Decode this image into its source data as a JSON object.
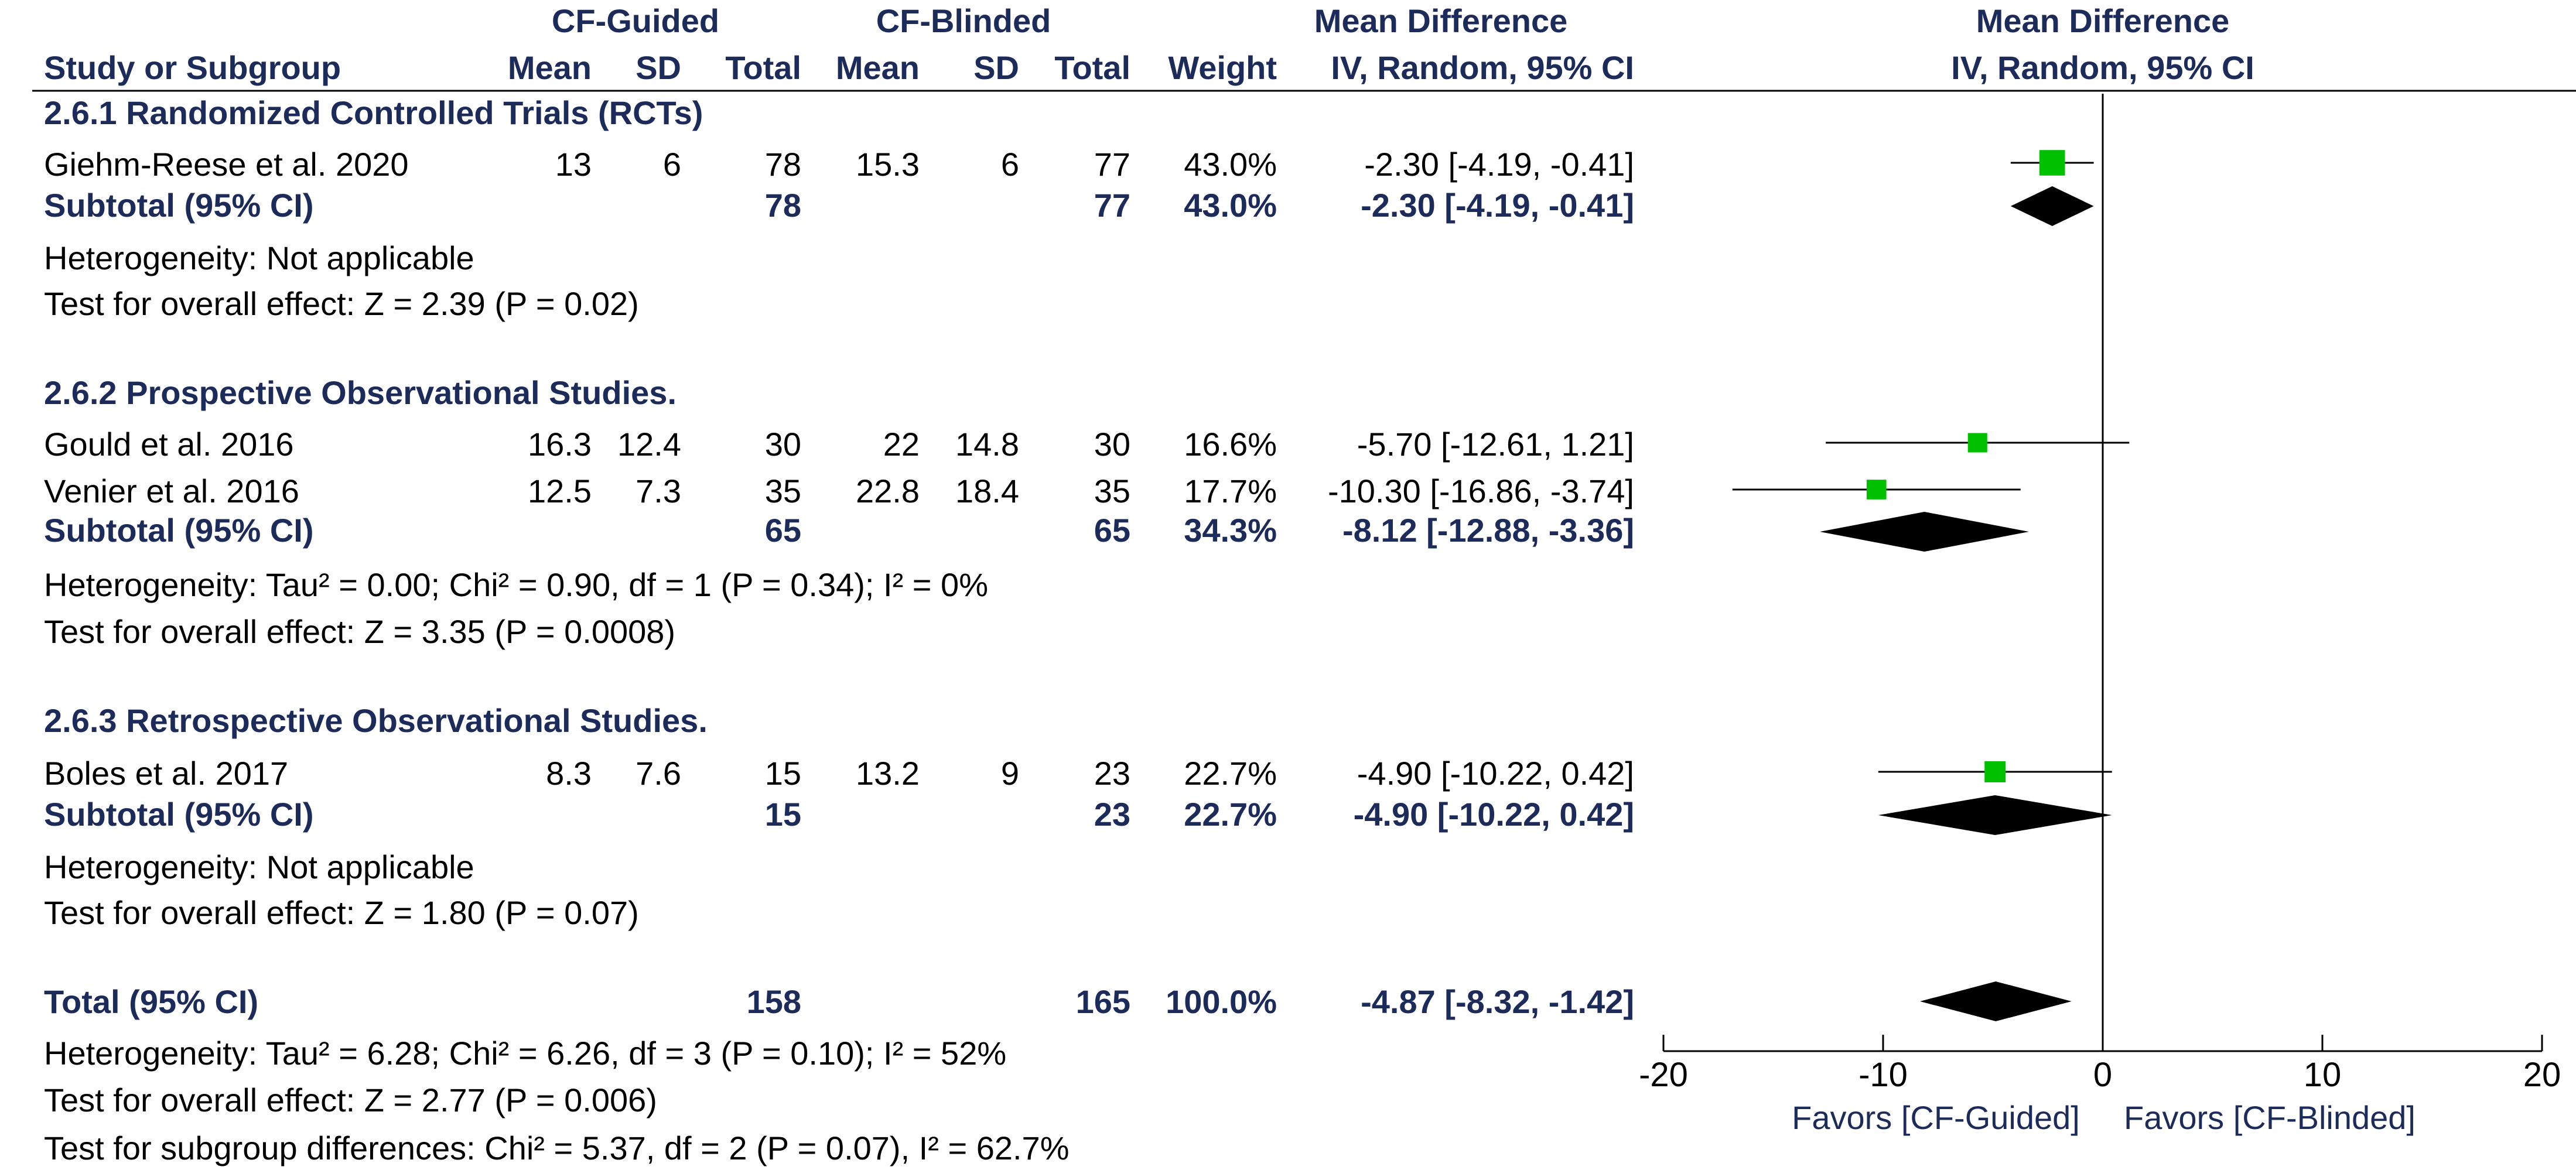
{
  "header": {
    "group1": "CF-Guided",
    "group2": "CF-Blinded",
    "md_title": "Mean Difference",
    "plot_title": "Mean Difference",
    "col_study": "Study or Subgroup",
    "col_mean1": "Mean",
    "col_sd1": "SD",
    "col_total1": "Total",
    "col_mean2": "Mean",
    "col_sd2": "SD",
    "col_total2": "Total",
    "col_weight": "Weight",
    "col_ci": "IV, Random, 95% CI",
    "plot_ci": "IV, Random, 95% CI"
  },
  "subgroups": [
    {
      "title": "2.6.1 Randomized Controlled Trials (RCTs)",
      "studies": [
        {
          "name": "Giehm-Reese et al. 2020",
          "m1": "13",
          "sd1": "6",
          "n1": "78",
          "m2": "15.3",
          "sd2": "6",
          "n2": "77",
          "weight": "43.0%",
          "ci": "-2.30 [-4.19, -0.41]"
        }
      ],
      "subtotal": {
        "label": "Subtotal (95% CI)",
        "n1": "78",
        "n2": "77",
        "weight": "43.0%",
        "ci": "-2.30 [-4.19, -0.41]"
      },
      "heterogeneity": "Heterogeneity: Not applicable",
      "overall": "Test for overall effect: Z = 2.39 (P = 0.02)"
    },
    {
      "title": "2.6.2 Prospective Observational Studies.",
      "studies": [
        {
          "name": "Gould et al. 2016",
          "m1": "16.3",
          "sd1": "12.4",
          "n1": "30",
          "m2": "22",
          "sd2": "14.8",
          "n2": "30",
          "weight": "16.6%",
          "ci": "-5.70 [-12.61, 1.21]"
        },
        {
          "name": "Venier et al. 2016",
          "m1": "12.5",
          "sd1": "7.3",
          "n1": "35",
          "m2": "22.8",
          "sd2": "18.4",
          "n2": "35",
          "weight": "17.7%",
          "ci": "-10.30 [-16.86, -3.74]"
        }
      ],
      "subtotal": {
        "label": "Subtotal (95% CI)",
        "n1": "65",
        "n2": "65",
        "weight": "34.3%",
        "ci": "-8.12 [-12.88, -3.36]"
      },
      "heterogeneity": "Heterogeneity: Tau² = 0.00; Chi² = 0.90, df = 1 (P = 0.34); I² = 0%",
      "overall": "Test for overall effect: Z = 3.35 (P = 0.0008)"
    },
    {
      "title": "2.6.3 Retrospective Observational Studies.",
      "studies": [
        {
          "name": "Boles et al. 2017",
          "m1": "8.3",
          "sd1": "7.6",
          "n1": "15",
          "m2": "13.2",
          "sd2": "9",
          "n2": "23",
          "weight": "22.7%",
          "ci": "-4.90 [-10.22, 0.42]"
        }
      ],
      "subtotal": {
        "label": "Subtotal (95% CI)",
        "n1": "15",
        "n2": "23",
        "weight": "22.7%",
        "ci": "-4.90 [-10.22, 0.42]"
      },
      "heterogeneity": "Heterogeneity: Not applicable",
      "overall": "Test for overall effect: Z = 1.80 (P = 0.07)"
    }
  ],
  "total": {
    "label": "Total (95% CI)",
    "n1": "158",
    "n2": "165",
    "weight": "100.0%",
    "ci": "-4.87 [-8.32, -1.42]"
  },
  "footer": [
    "Heterogeneity: Tau² = 6.28; Chi² = 6.26, df = 3 (P = 0.10); I² = 52%",
    "Test for overall effect: Z = 2.77 (P = 0.006)",
    "Test for subgroup differences: Chi² = 5.37, df = 2 (P = 0.07), I² = 62.7%"
  ],
  "favors_left": "Favors [CF-Guided]",
  "favors_right": "Favors [CF-Blinded]",
  "colors": {
    "square": "#00c000",
    "diamond": "#000000",
    "header": "#1c2b5a"
  },
  "chart_data": {
    "type": "forest",
    "title": "Mean Difference",
    "xlabel": "IV, Random, 95% CI",
    "xlim": [
      -20,
      20
    ],
    "ticks": [
      -20,
      -10,
      0,
      10,
      20
    ],
    "studies": [
      {
        "name": "Giehm-Reese et al. 2020",
        "md": -2.3,
        "lo": -4.19,
        "hi": -0.41,
        "weight": 43.0
      },
      {
        "name": "Gould et al. 2016",
        "md": -5.7,
        "lo": -12.61,
        "hi": 1.21,
        "weight": 16.6
      },
      {
        "name": "Venier et al. 2016",
        "md": -10.3,
        "lo": -16.86,
        "hi": -3.74,
        "weight": 17.7
      },
      {
        "name": "Boles et al. 2017",
        "md": -4.9,
        "lo": -10.22,
        "hi": 0.42,
        "weight": 22.7
      }
    ],
    "subtotals": [
      {
        "name": "RCTs subtotal",
        "md": -2.3,
        "lo": -4.19,
        "hi": -0.41
      },
      {
        "name": "Prospective subtotal",
        "md": -8.12,
        "lo": -12.88,
        "hi": -3.36
      },
      {
        "name": "Retrospective subtotal",
        "md": -4.9,
        "lo": -10.22,
        "hi": 0.42
      }
    ],
    "overall": {
      "name": "Total",
      "md": -4.87,
      "lo": -8.32,
      "hi": -1.42
    }
  }
}
